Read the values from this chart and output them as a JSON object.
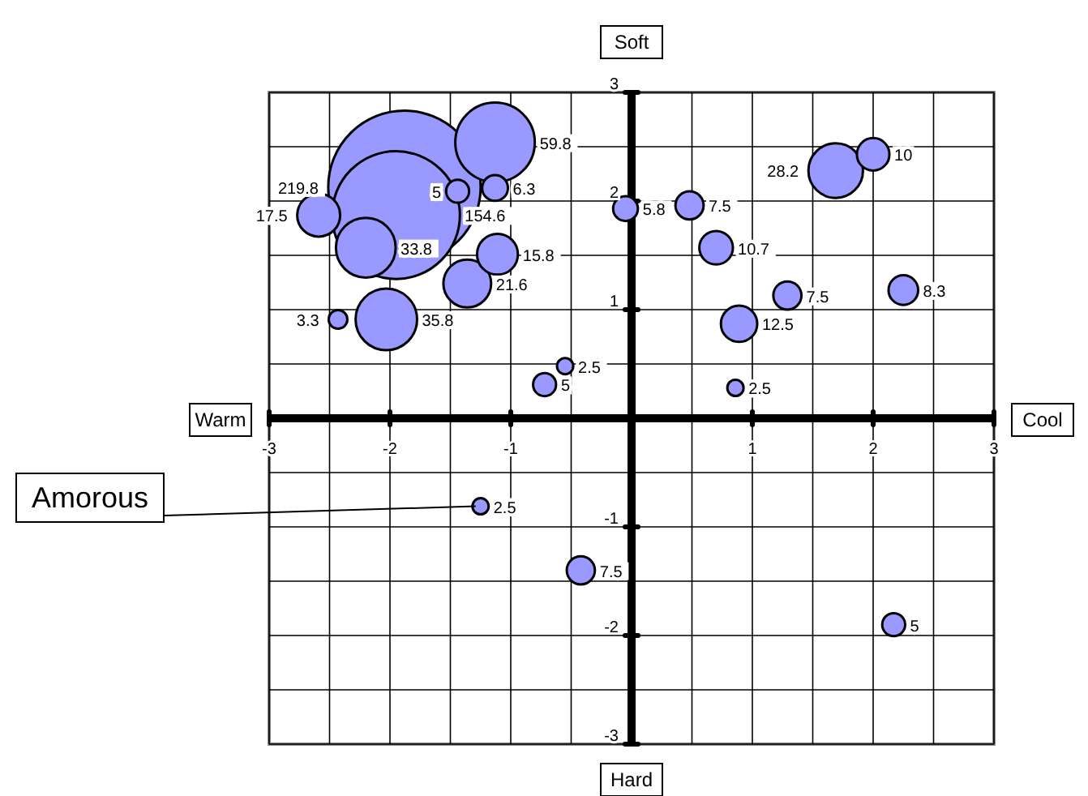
{
  "chart_data": {
    "type": "bubble",
    "color": "#9999ff",
    "x": [
      -1.88,
      -1.95,
      -1.13,
      -1.44,
      -1.13,
      -2.59,
      -2.2,
      -1.11,
      -1.36,
      -2.03,
      -2.43,
      -0.05,
      0.48,
      0.7,
      1.69,
      2.0,
      1.29,
      2.25,
      0.89,
      -0.55,
      -0.72,
      -1.25,
      -0.42,
      0.86,
      2.17
    ],
    "values": [
      2.13,
      1.87,
      2.54,
      2.09,
      2.12,
      1.87,
      1.57,
      1.51,
      1.24,
      0.91,
      0.91,
      1.93,
      1.96,
      1.57,
      2.28,
      2.43,
      1.13,
      1.18,
      0.87,
      0.48,
      0.31,
      -0.81,
      -1.4,
      0.28,
      -1.9
    ],
    "sizes": [
      219.8,
      154.6,
      59.8,
      5,
      6.3,
      17.5,
      33.8,
      15.8,
      21.6,
      35.8,
      3.3,
      5.8,
      7.5,
      10.7,
      28.2,
      10,
      7.5,
      8.3,
      12.5,
      2.5,
      5,
      2.5,
      7.5,
      2.5,
      5
    ],
    "value_labels": [
      "219.8",
      "154.6",
      "59.8",
      "5",
      "6.3",
      "17.5",
      "33.8",
      "15.8",
      "21.6",
      "35.8",
      "3.3",
      "5.8",
      "7.5",
      "10.7",
      "28.2",
      "10",
      "7.5",
      "8.3",
      "12.5",
      "2.5",
      "5",
      "2.5",
      "7.5",
      "2.5",
      "5"
    ],
    "xlim": [
      -3,
      3
    ],
    "ylim": [
      -3,
      3
    ],
    "xticks": [
      -3,
      {
        "value": -2.5,
        "label": null
      },
      -2,
      {
        "value": -1.5,
        "label": null
      },
      -1,
      {
        "value": -0.5,
        "label": null
      },
      {
        "value": 0,
        "label": null
      },
      {
        "value": 0.5,
        "label": null
      },
      1,
      {
        "value": 1.5,
        "label": null
      },
      2,
      {
        "value": 2.5,
        "label": null
      },
      3
    ],
    "yticks": [
      -3,
      {
        "value": -2.5,
        "label": null
      },
      -2,
      {
        "value": -1.5,
        "label": null
      },
      -1,
      {
        "value": -0.5,
        "label": null
      },
      {
        "value": 0,
        "label": null
      },
      {
        "value": 0.5,
        "label": null
      },
      1,
      {
        "value": 1.5,
        "label": null
      },
      2,
      {
        "value": 2.5,
        "label": null
      },
      3
    ],
    "grid": true,
    "annotations": [
      "Soft",
      "Hard",
      "Warm",
      "Cool",
      {
        "text": "Amorous",
        "x": -1.25,
        "y": -0.81
      }
    ]
  }
}
